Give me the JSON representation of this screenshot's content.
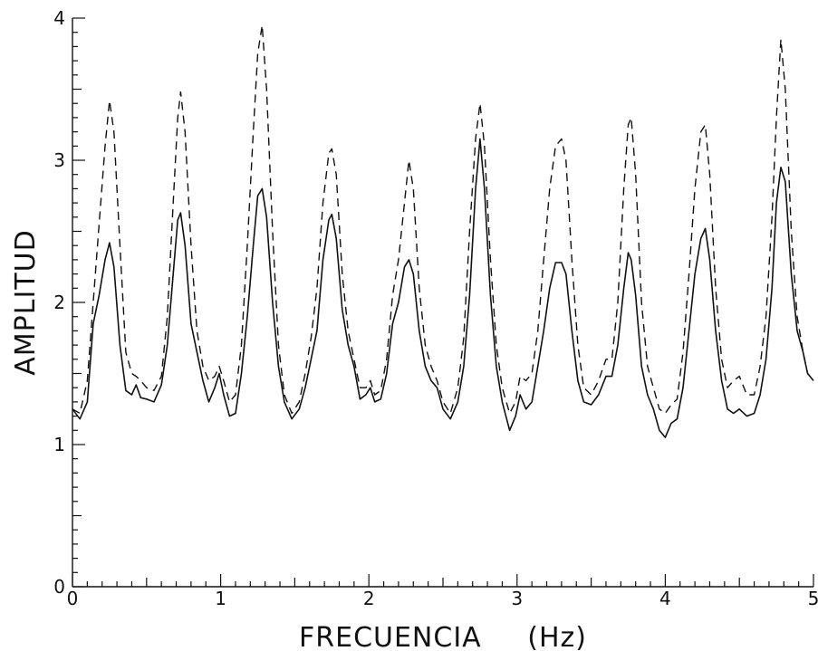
{
  "chart_data": {
    "type": "line",
    "title": "",
    "xlabel": "FRECUENCIA",
    "xunit": "(Hz)",
    "ylabel": "AMPLITUD",
    "xlim": [
      0,
      5
    ],
    "ylim": [
      0,
      4
    ],
    "x_ticks": [
      0,
      1,
      2,
      3,
      4,
      5
    ],
    "y_ticks": [
      0,
      1,
      2,
      3,
      4
    ],
    "x_minor_step": 0.1,
    "y_minor_step": 0.1,
    "grid": false,
    "series": [
      {
        "style": "solid",
        "color": "#111111",
        "points": [
          [
            0.0,
            1.25
          ],
          [
            0.05,
            1.18
          ],
          [
            0.1,
            1.3
          ],
          [
            0.14,
            1.85
          ],
          [
            0.18,
            2.05
          ],
          [
            0.22,
            2.3
          ],
          [
            0.25,
            2.42
          ],
          [
            0.28,
            2.25
          ],
          [
            0.32,
            1.7
          ],
          [
            0.36,
            1.38
          ],
          [
            0.4,
            1.35
          ],
          [
            0.43,
            1.42
          ],
          [
            0.46,
            1.33
          ],
          [
            0.5,
            1.32
          ],
          [
            0.55,
            1.3
          ],
          [
            0.6,
            1.42
          ],
          [
            0.64,
            1.7
          ],
          [
            0.68,
            2.2
          ],
          [
            0.71,
            2.58
          ],
          [
            0.73,
            2.63
          ],
          [
            0.76,
            2.4
          ],
          [
            0.8,
            1.85
          ],
          [
            0.84,
            1.65
          ],
          [
            0.88,
            1.45
          ],
          [
            0.92,
            1.3
          ],
          [
            0.96,
            1.4
          ],
          [
            0.99,
            1.5
          ],
          [
            1.02,
            1.35
          ],
          [
            1.06,
            1.2
          ],
          [
            1.1,
            1.22
          ],
          [
            1.14,
            1.5
          ],
          [
            1.18,
            1.9
          ],
          [
            1.22,
            2.4
          ],
          [
            1.25,
            2.75
          ],
          [
            1.28,
            2.8
          ],
          [
            1.31,
            2.6
          ],
          [
            1.35,
            2.0
          ],
          [
            1.39,
            1.55
          ],
          [
            1.43,
            1.3
          ],
          [
            1.48,
            1.18
          ],
          [
            1.53,
            1.25
          ],
          [
            1.57,
            1.4
          ],
          [
            1.61,
            1.6
          ],
          [
            1.65,
            1.8
          ],
          [
            1.69,
            2.3
          ],
          [
            1.73,
            2.58
          ],
          [
            1.75,
            2.62
          ],
          [
            1.78,
            2.45
          ],
          [
            1.82,
            1.95
          ],
          [
            1.86,
            1.7
          ],
          [
            1.9,
            1.55
          ],
          [
            1.94,
            1.32
          ],
          [
            1.98,
            1.35
          ],
          [
            2.01,
            1.4
          ],
          [
            2.04,
            1.3
          ],
          [
            2.08,
            1.32
          ],
          [
            2.12,
            1.5
          ],
          [
            2.16,
            1.85
          ],
          [
            2.2,
            2.0
          ],
          [
            2.24,
            2.25
          ],
          [
            2.27,
            2.3
          ],
          [
            2.3,
            2.2
          ],
          [
            2.34,
            1.8
          ],
          [
            2.38,
            1.55
          ],
          [
            2.42,
            1.45
          ],
          [
            2.46,
            1.4
          ],
          [
            2.5,
            1.25
          ],
          [
            2.55,
            1.18
          ],
          [
            2.6,
            1.3
          ],
          [
            2.64,
            1.55
          ],
          [
            2.68,
            2.05
          ],
          [
            2.72,
            2.8
          ],
          [
            2.75,
            3.15
          ],
          [
            2.78,
            2.8
          ],
          [
            2.82,
            2.05
          ],
          [
            2.86,
            1.55
          ],
          [
            2.9,
            1.3
          ],
          [
            2.95,
            1.1
          ],
          [
            2.99,
            1.2
          ],
          [
            3.02,
            1.35
          ],
          [
            3.06,
            1.25
          ],
          [
            3.1,
            1.3
          ],
          [
            3.14,
            1.55
          ],
          [
            3.18,
            1.8
          ],
          [
            3.22,
            2.1
          ],
          [
            3.26,
            2.28
          ],
          [
            3.3,
            2.28
          ],
          [
            3.33,
            2.2
          ],
          [
            3.37,
            1.8
          ],
          [
            3.41,
            1.45
          ],
          [
            3.45,
            1.3
          ],
          [
            3.5,
            1.28
          ],
          [
            3.55,
            1.35
          ],
          [
            3.6,
            1.48
          ],
          [
            3.64,
            1.48
          ],
          [
            3.68,
            1.7
          ],
          [
            3.72,
            2.1
          ],
          [
            3.75,
            2.35
          ],
          [
            3.77,
            2.3
          ],
          [
            3.8,
            2.05
          ],
          [
            3.84,
            1.55
          ],
          [
            3.88,
            1.35
          ],
          [
            3.92,
            1.25
          ],
          [
            3.96,
            1.1
          ],
          [
            4.0,
            1.05
          ],
          [
            4.04,
            1.15
          ],
          [
            4.08,
            1.18
          ],
          [
            4.12,
            1.4
          ],
          [
            4.16,
            1.8
          ],
          [
            4.2,
            2.2
          ],
          [
            4.24,
            2.45
          ],
          [
            4.27,
            2.52
          ],
          [
            4.3,
            2.3
          ],
          [
            4.34,
            1.8
          ],
          [
            4.38,
            1.45
          ],
          [
            4.42,
            1.25
          ],
          [
            4.46,
            1.22
          ],
          [
            4.5,
            1.25
          ],
          [
            4.55,
            1.2
          ],
          [
            4.6,
            1.22
          ],
          [
            4.64,
            1.35
          ],
          [
            4.68,
            1.6
          ],
          [
            4.72,
            2.1
          ],
          [
            4.75,
            2.7
          ],
          [
            4.78,
            2.95
          ],
          [
            4.81,
            2.85
          ],
          [
            4.85,
            2.2
          ],
          [
            4.89,
            1.8
          ],
          [
            4.93,
            1.65
          ],
          [
            4.96,
            1.5
          ],
          [
            5.0,
            1.45
          ]
        ]
      },
      {
        "style": "dashed",
        "color": "#111111",
        "points": [
          [
            0.0,
            1.25
          ],
          [
            0.05,
            1.22
          ],
          [
            0.1,
            1.45
          ],
          [
            0.14,
            2.0
          ],
          [
            0.18,
            2.55
          ],
          [
            0.22,
            3.1
          ],
          [
            0.25,
            3.42
          ],
          [
            0.28,
            3.2
          ],
          [
            0.32,
            2.4
          ],
          [
            0.36,
            1.65
          ],
          [
            0.4,
            1.5
          ],
          [
            0.43,
            1.48
          ],
          [
            0.46,
            1.45
          ],
          [
            0.5,
            1.4
          ],
          [
            0.55,
            1.38
          ],
          [
            0.6,
            1.48
          ],
          [
            0.64,
            1.9
          ],
          [
            0.68,
            2.7
          ],
          [
            0.71,
            3.3
          ],
          [
            0.73,
            3.48
          ],
          [
            0.76,
            3.2
          ],
          [
            0.8,
            2.4
          ],
          [
            0.84,
            1.8
          ],
          [
            0.88,
            1.55
          ],
          [
            0.92,
            1.45
          ],
          [
            0.96,
            1.48
          ],
          [
            0.99,
            1.55
          ],
          [
            1.02,
            1.45
          ],
          [
            1.06,
            1.3
          ],
          [
            1.1,
            1.35
          ],
          [
            1.14,
            1.7
          ],
          [
            1.18,
            2.4
          ],
          [
            1.22,
            3.2
          ],
          [
            1.25,
            3.75
          ],
          [
            1.28,
            3.95
          ],
          [
            1.31,
            3.5
          ],
          [
            1.35,
            2.5
          ],
          [
            1.39,
            1.7
          ],
          [
            1.43,
            1.35
          ],
          [
            1.48,
            1.22
          ],
          [
            1.53,
            1.3
          ],
          [
            1.57,
            1.5
          ],
          [
            1.61,
            1.75
          ],
          [
            1.65,
            2.1
          ],
          [
            1.69,
            2.7
          ],
          [
            1.73,
            3.05
          ],
          [
            1.75,
            3.08
          ],
          [
            1.78,
            2.9
          ],
          [
            1.82,
            2.2
          ],
          [
            1.86,
            1.8
          ],
          [
            1.9,
            1.6
          ],
          [
            1.94,
            1.4
          ],
          [
            1.98,
            1.4
          ],
          [
            2.01,
            1.45
          ],
          [
            2.04,
            1.35
          ],
          [
            2.08,
            1.38
          ],
          [
            2.12,
            1.6
          ],
          [
            2.16,
            2.05
          ],
          [
            2.2,
            2.3
          ],
          [
            2.24,
            2.7
          ],
          [
            2.27,
            3.0
          ],
          [
            2.3,
            2.8
          ],
          [
            2.34,
            2.1
          ],
          [
            2.38,
            1.7
          ],
          [
            2.42,
            1.55
          ],
          [
            2.46,
            1.45
          ],
          [
            2.5,
            1.3
          ],
          [
            2.55,
            1.22
          ],
          [
            2.6,
            1.4
          ],
          [
            2.64,
            1.75
          ],
          [
            2.68,
            2.5
          ],
          [
            2.72,
            3.15
          ],
          [
            2.75,
            3.4
          ],
          [
            2.78,
            3.1
          ],
          [
            2.82,
            2.3
          ],
          [
            2.86,
            1.7
          ],
          [
            2.9,
            1.4
          ],
          [
            2.95,
            1.22
          ],
          [
            2.99,
            1.3
          ],
          [
            3.02,
            1.48
          ],
          [
            3.06,
            1.45
          ],
          [
            3.1,
            1.5
          ],
          [
            3.14,
            1.8
          ],
          [
            3.18,
            2.3
          ],
          [
            3.22,
            2.8
          ],
          [
            3.26,
            3.1
          ],
          [
            3.3,
            3.15
          ],
          [
            3.33,
            3.0
          ],
          [
            3.37,
            2.3
          ],
          [
            3.41,
            1.7
          ],
          [
            3.45,
            1.4
          ],
          [
            3.5,
            1.35
          ],
          [
            3.55,
            1.45
          ],
          [
            3.6,
            1.6
          ],
          [
            3.64,
            1.6
          ],
          [
            3.68,
            2.0
          ],
          [
            3.72,
            2.8
          ],
          [
            3.75,
            3.25
          ],
          [
            3.77,
            3.3
          ],
          [
            3.8,
            2.9
          ],
          [
            3.84,
            2.0
          ],
          [
            3.88,
            1.55
          ],
          [
            3.92,
            1.4
          ],
          [
            3.96,
            1.25
          ],
          [
            4.0,
            1.22
          ],
          [
            4.04,
            1.28
          ],
          [
            4.08,
            1.32
          ],
          [
            4.12,
            1.65
          ],
          [
            4.16,
            2.2
          ],
          [
            4.2,
            2.8
          ],
          [
            4.24,
            3.2
          ],
          [
            4.27,
            3.25
          ],
          [
            4.3,
            2.9
          ],
          [
            4.34,
            2.1
          ],
          [
            4.38,
            1.6
          ],
          [
            4.42,
            1.4
          ],
          [
            4.46,
            1.45
          ],
          [
            4.5,
            1.48
          ],
          [
            4.55,
            1.35
          ],
          [
            4.6,
            1.35
          ],
          [
            4.64,
            1.55
          ],
          [
            4.68,
            1.9
          ],
          [
            4.72,
            2.6
          ],
          [
            4.75,
            3.3
          ],
          [
            4.78,
            3.85
          ],
          [
            4.81,
            3.5
          ],
          [
            4.85,
            2.5
          ],
          [
            4.89,
            1.9
          ],
          [
            4.93,
            1.65
          ],
          [
            4.96,
            1.5
          ],
          [
            5.0,
            1.45
          ]
        ]
      }
    ]
  }
}
